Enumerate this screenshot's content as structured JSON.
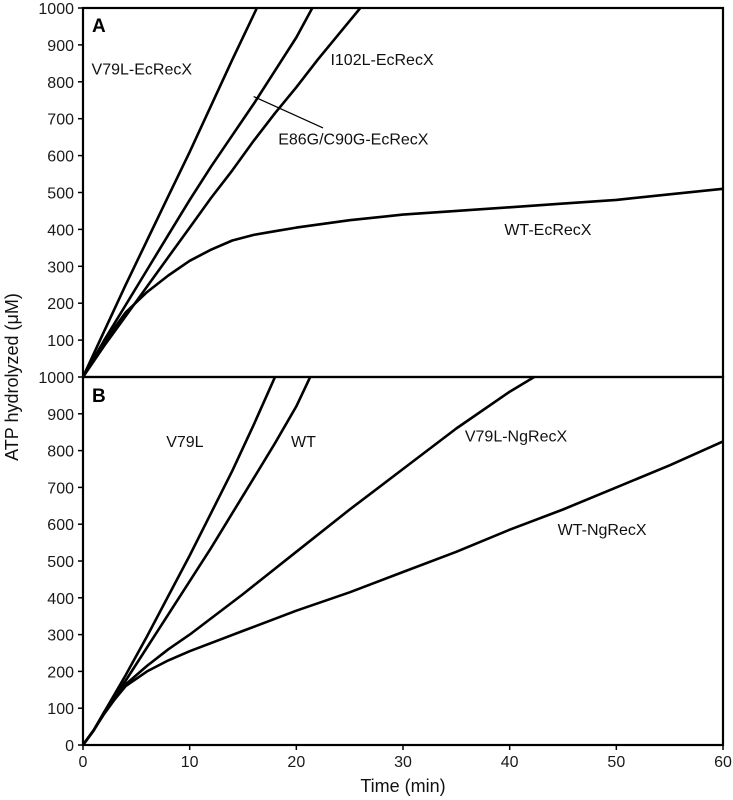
{
  "chart_data": [
    {
      "type": "line",
      "panel": "A",
      "ylabel": "ATP hydrolyzed (μM)",
      "xlim": [
        0,
        60
      ],
      "ylim": [
        0,
        1000
      ],
      "yticks": [
        1000,
        900,
        800,
        700,
        600,
        500,
        400,
        300,
        200,
        100
      ],
      "series": [
        {
          "name": "V79L-EcRecX",
          "x": [
            0,
            2,
            4,
            6,
            8,
            10,
            12,
            14,
            16.3
          ],
          "y": [
            0,
            125,
            250,
            370,
            490,
            610,
            735,
            860,
            1000
          ]
        },
        {
          "name": "E86G/C90G-EcRecX",
          "x": [
            0,
            2,
            4,
            6,
            8,
            10,
            12,
            14,
            16,
            18,
            20,
            21.5
          ],
          "y": [
            0,
            100,
            195,
            290,
            385,
            480,
            570,
            655,
            740,
            830,
            920,
            1000
          ]
        },
        {
          "name": "I102L-EcRecX",
          "x": [
            0,
            2,
            4,
            6,
            8,
            10,
            12,
            14,
            16,
            18,
            20,
            22,
            24,
            26
          ],
          "y": [
            0,
            85,
            165,
            245,
            325,
            405,
            485,
            560,
            640,
            715,
            785,
            860,
            930,
            1000
          ]
        },
        {
          "name": "WT-EcRecX",
          "x": [
            0,
            2,
            4,
            6,
            8,
            10,
            12,
            14,
            16,
            18,
            20,
            25,
            30,
            35,
            40,
            45,
            50,
            55,
            60
          ],
          "y": [
            0,
            95,
            175,
            230,
            275,
            315,
            345,
            370,
            385,
            395,
            405,
            425,
            440,
            450,
            460,
            470,
            480,
            495,
            510
          ]
        }
      ]
    },
    {
      "type": "line",
      "panel": "B",
      "xlabel": "Time (min)",
      "xlim": [
        0,
        60
      ],
      "ylim": [
        0,
        1000
      ],
      "xticks": [
        0,
        10,
        20,
        30,
        40,
        50,
        60
      ],
      "yticks": [
        1000,
        900,
        800,
        700,
        600,
        500,
        400,
        300,
        200,
        100,
        0
      ],
      "series": [
        {
          "name": "V79L",
          "x": [
            0,
            1,
            2,
            3,
            4,
            6,
            8,
            10,
            12,
            14,
            16,
            18
          ],
          "y": [
            0,
            40,
            90,
            140,
            190,
            295,
            405,
            515,
            630,
            745,
            870,
            1000
          ]
        },
        {
          "name": "WT",
          "x": [
            0,
            1,
            2,
            3,
            4,
            6,
            8,
            10,
            12,
            14,
            16,
            18,
            20,
            21.3
          ],
          "y": [
            0,
            40,
            90,
            135,
            175,
            265,
            355,
            445,
            535,
            630,
            725,
            820,
            920,
            1000
          ]
        },
        {
          "name": "V79L-NgRecX",
          "x": [
            0,
            1,
            2,
            3,
            4,
            6,
            8,
            10,
            15,
            20,
            25,
            30,
            35,
            40,
            42.3
          ],
          "y": [
            0,
            40,
            88,
            130,
            165,
            215,
            260,
            300,
            410,
            525,
            640,
            750,
            860,
            960,
            1000
          ]
        },
        {
          "name": "WT-NgRecX",
          "x": [
            0,
            1,
            2,
            3,
            4,
            6,
            8,
            10,
            15,
            20,
            25,
            30,
            35,
            40,
            45,
            50,
            55,
            60
          ],
          "y": [
            0,
            40,
            85,
            125,
            160,
            200,
            230,
            255,
            310,
            365,
            415,
            470,
            525,
            585,
            640,
            700,
            760,
            825
          ]
        }
      ]
    }
  ],
  "annotations": {
    "A": [
      {
        "label": "V79L-EcRecX",
        "x": 0.8,
        "y": 820
      },
      {
        "label": "I102L-EcRecX",
        "x": 23.2,
        "y": 845
      },
      {
        "label": "E86G/C90G-EcRecX",
        "x": 18.3,
        "y": 630,
        "leader_from": [
          16,
          760
        ],
        "leader_to": [
          22.5,
          675
        ]
      },
      {
        "label": "WT-EcRecX",
        "x": 39.5,
        "y": 385
      }
    ],
    "B": [
      {
        "label": "V79L",
        "x": 7.8,
        "y": 810
      },
      {
        "label": "WT",
        "x": 19.5,
        "y": 810
      },
      {
        "label": "V79L-NgRecX",
        "x": 35.8,
        "y": 825
      },
      {
        "label": "WT-NgRecX",
        "x": 44.5,
        "y": 570
      }
    ]
  }
}
